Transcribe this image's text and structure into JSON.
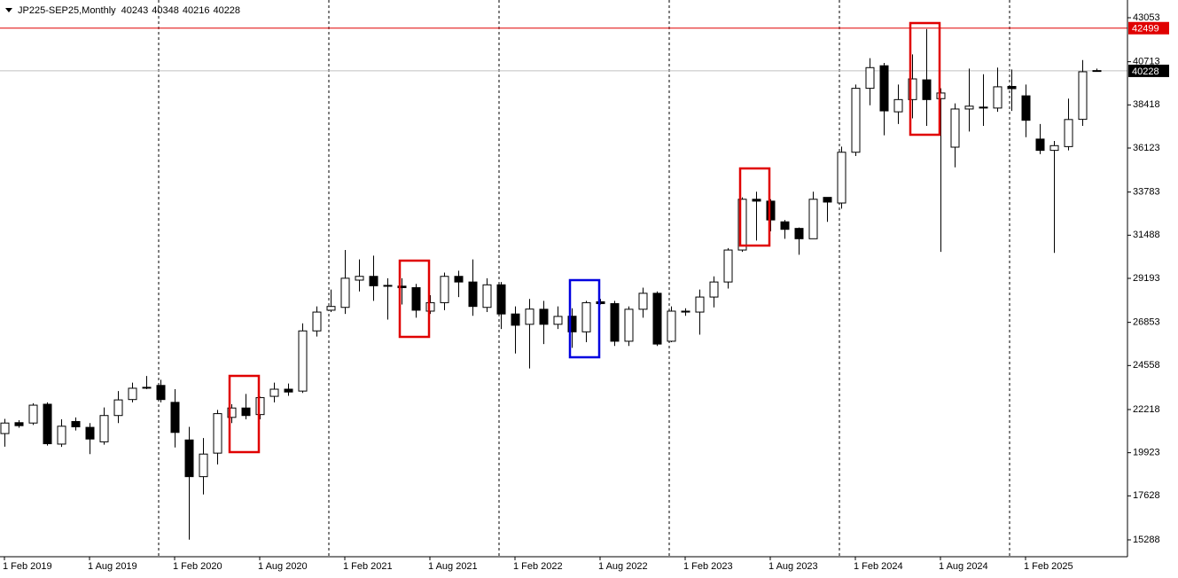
{
  "chart_data": {
    "type": "candlestick",
    "title": "JP225-SEP25,Monthly",
    "categories": [
      "1 Feb 2019",
      null,
      null,
      null,
      null,
      null,
      "1 Aug 2019",
      null,
      null,
      null,
      null,
      null,
      "1 Feb 2020",
      null,
      null,
      null,
      null,
      null,
      "1 Aug 2020",
      null,
      null,
      null,
      null,
      null,
      "1 Feb 2021",
      null,
      null,
      null,
      null,
      null,
      "1 Aug 2021",
      null,
      null,
      null,
      null,
      null,
      "1 Feb 2022",
      null,
      null,
      null,
      null,
      null,
      "1 Aug 2022",
      null,
      null,
      null,
      null,
      null,
      "1 Feb 2023",
      null,
      null,
      null,
      null,
      null,
      "1 Aug 2023",
      null,
      null,
      null,
      null,
      null,
      "1 Feb 2024",
      null,
      null,
      null,
      null,
      null,
      "1 Aug 2024",
      null,
      null,
      null,
      null,
      null,
      "1 Feb 2025",
      null,
      null,
      null,
      null,
      null
    ],
    "open": [
      20940,
      21520,
      21500,
      22500,
      20380,
      21580,
      21270,
      20500,
      21900,
      22750,
      23400,
      23500,
      22600,
      20600,
      18650,
      19900,
      21800,
      22300,
      21950,
      22920,
      23300,
      23200,
      26400,
      27500,
      27650,
      29100,
      29300,
      28820,
      28780,
      28700,
      27450,
      27900,
      29300,
      29000,
      27650,
      28850,
      27300,
      26750,
      27550,
      26750,
      27180,
      26350,
      27950,
      27850,
      25850,
      27550,
      28400,
      25850,
      27450,
      27400,
      28200,
      29000,
      30700,
      33400,
      33300,
      32200,
      31850,
      31300,
      33500,
      33200,
      35900,
      39300,
      40500,
      38050,
      38700,
      39750,
      38750,
      36170,
      38200,
      38300,
      38250,
      39400,
      38900,
      36600,
      36000,
      36200,
      37650,
      40243
    ],
    "high": [
      21720,
      21650,
      22550,
      22600,
      21700,
      21800,
      21500,
      22330,
      23200,
      23650,
      24000,
      23800,
      23300,
      21300,
      20700,
      22200,
      22500,
      23050,
      22900,
      23650,
      23600,
      26800,
      27700,
      28600,
      30700,
      30200,
      30400,
      29200,
      29200,
      28900,
      28300,
      29500,
      29600,
      30200,
      29200,
      29000,
      27700,
      28100,
      28000,
      27700,
      27600,
      28000,
      28100,
      28000,
      27700,
      28700,
      28500,
      27700,
      27600,
      28600,
      29300,
      30800,
      33500,
      33800,
      33400,
      32300,
      31900,
      33800,
      33500,
      36200,
      39500,
      40900,
      40650,
      39500,
      41100,
      42450,
      39300,
      38500,
      40350,
      40050,
      40400,
      40300,
      39500,
      37400,
      36500,
      38750,
      40800,
      40348
    ],
    "low": [
      20240,
      21250,
      21400,
      20300,
      20230,
      21100,
      19850,
      20350,
      21500,
      22600,
      23300,
      22600,
      20200,
      15300,
      17700,
      19300,
      21500,
      21700,
      21700,
      22600,
      22950,
      23100,
      26100,
      27400,
      27300,
      28500,
      28000,
      27000,
      27800,
      27100,
      27300,
      27500,
      28200,
      27200,
      27400,
      26500,
      25200,
      24400,
      25700,
      26500,
      25500,
      25800,
      27800,
      25600,
      25600,
      27100,
      25600,
      25800,
      27200,
      26200,
      27650,
      28650,
      30600,
      31200,
      31700,
      31300,
      30450,
      31300,
      32200,
      32900,
      35700,
      38400,
      36800,
      37400,
      37700,
      37300,
      30600,
      35100,
      37000,
      37300,
      38050,
      38100,
      36700,
      35800,
      30550,
      36000,
      37300,
      40216
    ],
    "close": [
      21500,
      21360,
      22450,
      20400,
      21330,
      21300,
      20650,
      21900,
      22730,
      23350,
      23370,
      22750,
      21000,
      18650,
      19850,
      22000,
      22300,
      21900,
      22850,
      23300,
      23150,
      26400,
      27400,
      27700,
      29200,
      29300,
      28800,
      28800,
      28700,
      27500,
      27900,
      29300,
      29000,
      27700,
      28850,
      27300,
      26700,
      27560,
      26750,
      27170,
      26350,
      27900,
      27850,
      25850,
      27550,
      28400,
      25700,
      27450,
      27400,
      28200,
      29000,
      30700,
      33400,
      33300,
      32300,
      31800,
      31300,
      33400,
      33250,
      35900,
      39300,
      40400,
      38100,
      38700,
      39800,
      38700,
      39050,
      38200,
      38350,
      38250,
      39380,
      39280,
      37600,
      36000,
      36250,
      37640,
      40180,
      40228
    ],
    "up_color": "#ffffff",
    "down_color": "#000000",
    "ylim": [
      14391,
      43996
    ],
    "yticks": [
      15288,
      17628,
      19923,
      22218,
      24558,
      26853,
      29193,
      31488,
      33783,
      36123,
      38418,
      40713,
      43053
    ],
    "levels": [
      {
        "value": 42499,
        "color": "#e00000",
        "label_color": "#e00000"
      },
      {
        "value": 40228,
        "color": "#c0c0c0",
        "label_color": "#000000"
      }
    ]
  }
}
